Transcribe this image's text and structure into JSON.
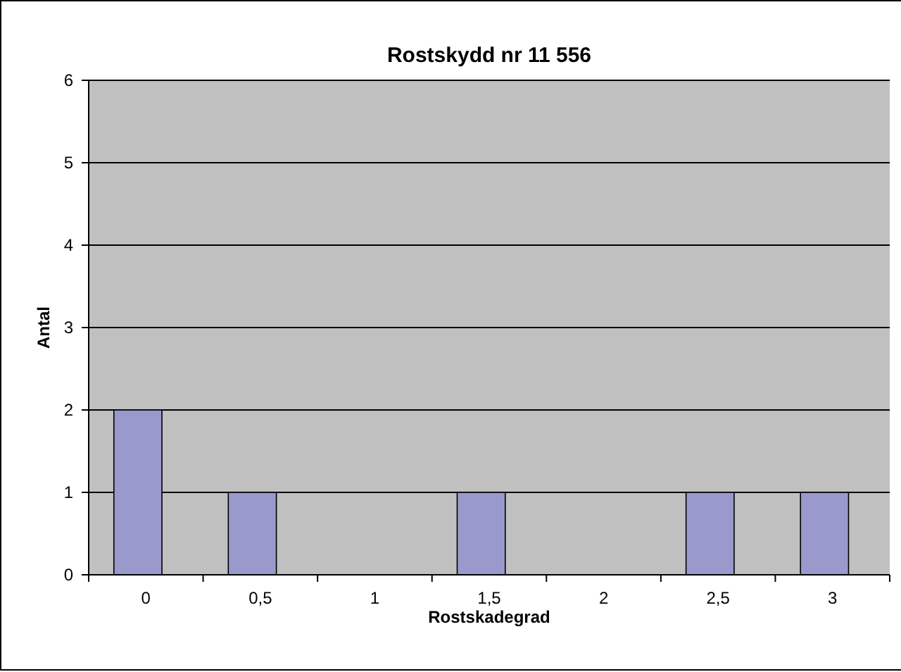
{
  "chart_data": {
    "type": "bar",
    "title": "Rostskydd nr 11 556",
    "xlabel": "Rostskadegrad",
    "ylabel": "Antal",
    "categories": [
      "0",
      "0,5",
      "1",
      "1,5",
      "2",
      "2,5",
      "3"
    ],
    "values": [
      2,
      1,
      0,
      1,
      0,
      1,
      1
    ],
    "color": "#9999cc",
    "ylim": [
      0,
      6
    ],
    "yticks": [
      0,
      1,
      2,
      3,
      4,
      5,
      6
    ],
    "grid": "y"
  }
}
